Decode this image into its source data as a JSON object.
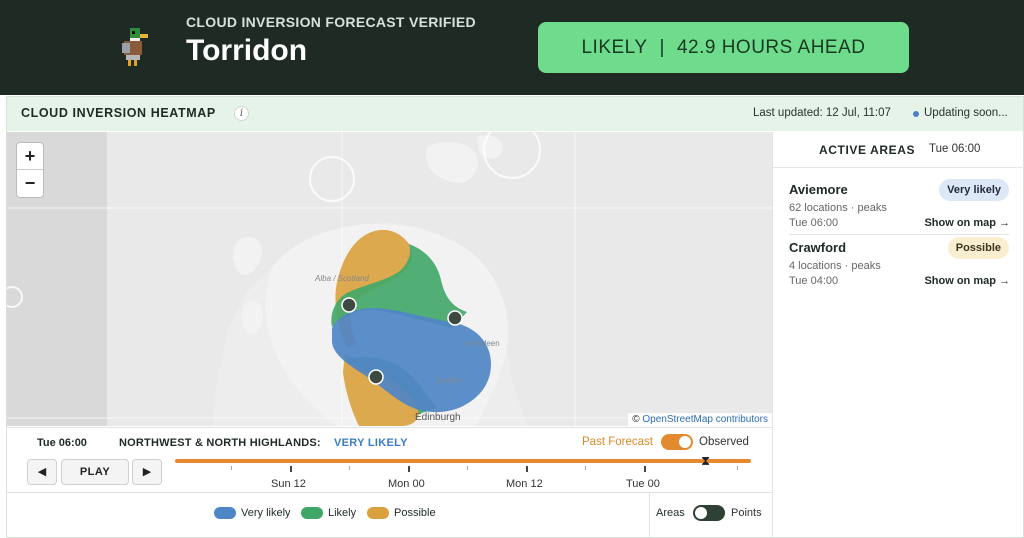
{
  "banner": {
    "subtitle": "CLOUD INVERSION FORECAST VERIFIED",
    "title": "Torridon",
    "status_left": "LIKELY",
    "status_sep": "|",
    "status_right": "42.9 HOURS AHEAD",
    "logo_icon": "duck-icon",
    "background": "#1f2a24",
    "status_color": "#6fdb8c"
  },
  "card": {
    "title": "CLOUD INVERSION HEATMAP",
    "info_icon": "i",
    "last_updated": "Last updated: 12 Jul, 11:07",
    "updating": "Updating soon..."
  },
  "map": {
    "zoom_in": "+",
    "zoom_out": "−",
    "attribution_prefix": "©",
    "attribution_link": "OpenStreetMap contributors",
    "labels": {
      "alba": "Alba / Scotland",
      "aberdeen": "Aberdeen",
      "dundee": "Dundee",
      "edinburgh": "Edinburgh"
    }
  },
  "side_panel": {
    "title": "ACTIVE AREAS",
    "time": "Tue 06:00",
    "areas": [
      {
        "name": "Aviemore",
        "meta": "62 locations · peaks",
        "time": "Tue 06:00",
        "badge": "Very likely",
        "link": "Show on map →"
      },
      {
        "name": "Crawford",
        "meta": "4 locations · peaks",
        "time": "Tue 04:00",
        "badge": "Possible",
        "link": "Show on map →"
      }
    ]
  },
  "timeline": {
    "current_time": "Tue 06:00",
    "region": "NORTHWEST & NORTH HIGHLANDS:",
    "region_status": "VERY LIKELY",
    "toggle_left": "Past Forecast",
    "toggle_right": "Observed",
    "prev": "◀",
    "play": "PLAY",
    "next": "▶",
    "playhead_icon": "hourglass-icon",
    "tick_labels": [
      "Sun 12",
      "Mon 00",
      "Mon 12",
      "Tue 00"
    ]
  },
  "legend": {
    "very_likely": "Very likely",
    "likely": "Likely",
    "possible": "Possible",
    "areas": "Areas",
    "points": "Points",
    "colors": {
      "very_likely": "#4f86c6",
      "likely": "#3fa768",
      "possible": "#d9a13d"
    }
  }
}
